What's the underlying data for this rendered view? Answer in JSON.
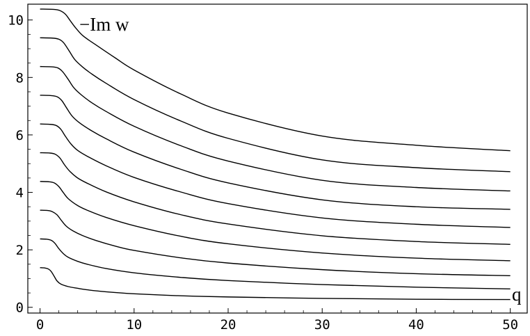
{
  "chart_data": {
    "type": "line",
    "title": "",
    "xlabel": "q",
    "ylabel": "−Im w",
    "xlim": [
      -1.3,
      51.8
    ],
    "ylim": [
      -0.2,
      10.55
    ],
    "xticks": [
      "0",
      "10",
      "20",
      "30",
      "40",
      "50"
    ],
    "yticks": [
      "0",
      "2",
      "4",
      "6",
      "8",
      "10"
    ],
    "grid": false,
    "series": [
      {
        "values": [
          [
            0,
            1.38
          ],
          [
            0.5,
            1.37
          ],
          [
            0.9,
            1.33
          ],
          [
            1.2,
            1.24
          ],
          [
            1.5,
            1.08
          ],
          [
            1.8,
            0.92
          ],
          [
            2.2,
            0.81
          ],
          [
            3,
            0.72
          ],
          [
            4,
            0.66
          ],
          [
            5,
            0.61
          ],
          [
            7,
            0.54
          ],
          [
            10,
            0.47
          ],
          [
            15,
            0.4
          ],
          [
            20,
            0.36
          ],
          [
            30,
            0.31
          ],
          [
            40,
            0.28
          ],
          [
            50,
            0.27
          ]
        ]
      },
      {
        "values": [
          [
            0,
            2.38
          ],
          [
            0.7,
            2.37
          ],
          [
            1.2,
            2.33
          ],
          [
            1.6,
            2.22
          ],
          [
            2,
            2.04
          ],
          [
            2.5,
            1.86
          ],
          [
            3,
            1.74
          ],
          [
            4,
            1.6
          ],
          [
            5,
            1.5
          ],
          [
            7,
            1.35
          ],
          [
            10,
            1.2
          ],
          [
            15,
            1.04
          ],
          [
            20,
            0.93
          ],
          [
            30,
            0.79
          ],
          [
            40,
            0.7
          ],
          [
            50,
            0.64
          ]
        ]
      },
      {
        "values": [
          [
            0,
            3.38
          ],
          [
            0.8,
            3.37
          ],
          [
            1.3,
            3.33
          ],
          [
            1.8,
            3.22
          ],
          [
            2.3,
            3.01
          ],
          [
            2.8,
            2.82
          ],
          [
            3.5,
            2.66
          ],
          [
            4.5,
            2.5
          ],
          [
            6,
            2.32
          ],
          [
            8,
            2.13
          ],
          [
            10,
            1.98
          ],
          [
            15,
            1.72
          ],
          [
            20,
            1.54
          ],
          [
            30,
            1.31
          ],
          [
            40,
            1.17
          ],
          [
            50,
            1.1
          ]
        ]
      },
      {
        "values": [
          [
            0,
            4.38
          ],
          [
            0.9,
            4.37
          ],
          [
            1.5,
            4.33
          ],
          [
            2,
            4.2
          ],
          [
            2.5,
            3.98
          ],
          [
            3,
            3.78
          ],
          [
            4,
            3.54
          ],
          [
            5,
            3.38
          ],
          [
            7,
            3.13
          ],
          [
            10,
            2.84
          ],
          [
            15,
            2.47
          ],
          [
            20,
            2.21
          ],
          [
            30,
            1.89
          ],
          [
            40,
            1.71
          ],
          [
            50,
            1.62
          ]
        ]
      },
      {
        "values": [
          [
            0,
            5.38
          ],
          [
            1,
            5.37
          ],
          [
            1.6,
            5.33
          ],
          [
            2.1,
            5.2
          ],
          [
            2.6,
            4.96
          ],
          [
            3.2,
            4.72
          ],
          [
            4,
            4.5
          ],
          [
            5,
            4.32
          ],
          [
            7,
            4.02
          ],
          [
            10,
            3.67
          ],
          [
            15,
            3.22
          ],
          [
            20,
            2.9
          ],
          [
            30,
            2.49
          ],
          [
            40,
            2.29
          ],
          [
            50,
            2.19
          ]
        ]
      },
      {
        "values": [
          [
            0,
            6.38
          ],
          [
            1,
            6.37
          ],
          [
            1.7,
            6.33
          ],
          [
            2.2,
            6.2
          ],
          [
            2.7,
            5.95
          ],
          [
            3.3,
            5.68
          ],
          [
            4,
            5.46
          ],
          [
            5,
            5.26
          ],
          [
            7,
            4.93
          ],
          [
            10,
            4.52
          ],
          [
            15,
            4.01
          ],
          [
            20,
            3.61
          ],
          [
            30,
            3.11
          ],
          [
            40,
            2.89
          ],
          [
            50,
            2.78
          ]
        ]
      },
      {
        "values": [
          [
            0,
            7.38
          ],
          [
            1.1,
            7.37
          ],
          [
            1.8,
            7.33
          ],
          [
            2.3,
            7.2
          ],
          [
            2.8,
            6.95
          ],
          [
            3.4,
            6.66
          ],
          [
            4.2,
            6.42
          ],
          [
            5.5,
            6.14
          ],
          [
            7,
            5.87
          ],
          [
            10,
            5.4
          ],
          [
            15,
            4.8
          ],
          [
            20,
            4.33
          ],
          [
            30,
            3.74
          ],
          [
            40,
            3.5
          ],
          [
            50,
            3.41
          ]
        ]
      },
      {
        "values": [
          [
            0,
            8.38
          ],
          [
            1.2,
            8.37
          ],
          [
            1.9,
            8.33
          ],
          [
            2.4,
            8.2
          ],
          [
            3,
            7.93
          ],
          [
            3.6,
            7.64
          ],
          [
            4.4,
            7.39
          ],
          [
            5.5,
            7.12
          ],
          [
            7,
            6.82
          ],
          [
            10,
            6.3
          ],
          [
            15,
            5.62
          ],
          [
            20,
            5.09
          ],
          [
            30,
            4.42
          ],
          [
            40,
            4.17
          ],
          [
            50,
            4.05
          ]
        ]
      },
      {
        "values": [
          [
            0,
            9.38
          ],
          [
            1.3,
            9.37
          ],
          [
            2,
            9.33
          ],
          [
            2.5,
            9.21
          ],
          [
            3.1,
            8.92
          ],
          [
            3.7,
            8.62
          ],
          [
            4.5,
            8.37
          ],
          [
            5.5,
            8.12
          ],
          [
            7,
            7.8
          ],
          [
            10,
            7.23
          ],
          [
            15,
            6.48
          ],
          [
            20,
            5.88
          ],
          [
            30,
            5.13
          ],
          [
            40,
            4.86
          ],
          [
            50,
            4.72
          ]
        ]
      },
      {
        "values": [
          [
            0,
            10.38
          ],
          [
            1.4,
            10.37
          ],
          [
            2.1,
            10.33
          ],
          [
            2.7,
            10.2
          ],
          [
            3.2,
            9.98
          ],
          [
            3.8,
            9.72
          ],
          [
            4.6,
            9.44
          ],
          [
            6,
            9.12
          ],
          [
            8,
            8.68
          ],
          [
            10,
            8.26
          ],
          [
            15,
            7.42
          ],
          [
            20,
            6.76
          ],
          [
            30,
            5.96
          ],
          [
            40,
            5.64
          ],
          [
            50,
            5.45
          ]
        ]
      }
    ]
  }
}
